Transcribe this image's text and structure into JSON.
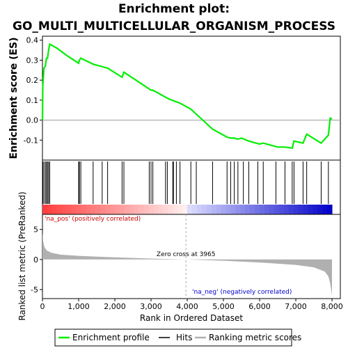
{
  "title_line1": "Enrichment plot:",
  "title_line2": "GO_MULTI_MULTICELLULAR_ORGANISM_PROCESS",
  "colors": {
    "enrichment": "#00ee00",
    "hits": "#000000",
    "ranking": "#b0b0b0",
    "pos_label": "#cc0000",
    "neg_label": "#0000cc"
  },
  "chart_data": [
    {
      "type": "line",
      "ylabel": "Enrichment score (ES)",
      "ylim": [
        -0.2,
        0.42
      ],
      "xlim": [
        0,
        8230
      ],
      "yticks": [
        "0.4",
        "0.3",
        "0.2",
        "0.1",
        "0.0",
        "-0.1"
      ],
      "ytick_values": [
        0.4,
        0.3,
        0.2,
        0.1,
        0.0,
        -0.1
      ],
      "grid": false,
      "series": [
        {
          "name": "Enrichment profile",
          "x": [
            0,
            10,
            40,
            80,
            110,
            140,
            170,
            200,
            400,
            700,
            1000,
            1020,
            1060,
            1400,
            1700,
            1800,
            2200,
            2250,
            3000,
            3050,
            3400,
            3500,
            3800,
            4100,
            4250,
            4700,
            4800,
            5100,
            5200,
            5300,
            5400,
            5500,
            5700,
            6000,
            6100,
            6500,
            6700,
            6900,
            6950,
            7200,
            7300,
            7700,
            7900,
            7950,
            8000
          ],
          "y": [
            0.0,
            0.17,
            0.26,
            0.27,
            0.31,
            0.31,
            0.35,
            0.38,
            0.36,
            0.32,
            0.285,
            0.3,
            0.31,
            0.28,
            0.265,
            0.26,
            0.215,
            0.24,
            0.15,
            0.15,
            0.115,
            0.105,
            0.085,
            0.055,
            0.03,
            -0.045,
            -0.055,
            -0.085,
            -0.09,
            -0.09,
            -0.095,
            -0.09,
            -0.105,
            -0.12,
            -0.115,
            -0.135,
            -0.135,
            -0.14,
            -0.105,
            -0.115,
            -0.07,
            -0.115,
            -0.075,
            0.01,
            0.005
          ]
        }
      ]
    },
    {
      "type": "scatter",
      "series": [
        {
          "name": "Hits",
          "x": [
            10,
            40,
            80,
            110,
            140,
            170,
            200,
            1000,
            1020,
            1060,
            1400,
            1650,
            1800,
            2200,
            2250,
            2950,
            3000,
            3050,
            3400,
            3450,
            3600,
            3620,
            3700,
            3800,
            4100,
            4250,
            4700,
            5100,
            5200,
            5300,
            5400,
            5550,
            5700,
            5950,
            6100,
            6450,
            6700,
            6900,
            6950,
            7200,
            7300,
            7700,
            7900
          ]
        }
      ]
    },
    {
      "type": "area",
      "ylabel": "Ranked list metric (PreRanked)",
      "xlabel": "Rank in Ordered Dataset",
      "ylim": [
        -6.5,
        7.5
      ],
      "xlim": [
        0,
        8230
      ],
      "yticks": [
        "5",
        "0",
        "-5"
      ],
      "ytick_values": [
        5,
        0,
        -5
      ],
      "xticks": [
        "0",
        "1,000",
        "2,000",
        "3,000",
        "4,000",
        "5,000",
        "6,000",
        "7,000",
        "8,000"
      ],
      "xtick_values": [
        0,
        1000,
        2000,
        3000,
        4000,
        5000,
        6000,
        7000,
        8000
      ],
      "zero_cross_label": "Zero cross at 3965",
      "zero_cross": 3965,
      "pos_label": "'na_pos' (positively correlated)",
      "neg_label": "'na_neg' (negatively correlated)",
      "grid": false,
      "series": [
        {
          "name": "Ranking metric scores",
          "x": [
            0,
            20,
            60,
            120,
            250,
            500,
            1000,
            2000,
            3000,
            3965,
            5000,
            6000,
            7000,
            7500,
            7800,
            7900,
            7950,
            8000
          ],
          "y": [
            4.5,
            3.0,
            2.0,
            1.5,
            1.1,
            0.8,
            0.6,
            0.35,
            0.15,
            0.0,
            -0.2,
            -0.5,
            -0.9,
            -1.3,
            -2.0,
            -2.8,
            -4.0,
            -6.0
          ]
        }
      ]
    }
  ],
  "legend": {
    "entries": [
      "Enrichment profile",
      "Hits",
      "Ranking metric scores"
    ]
  }
}
